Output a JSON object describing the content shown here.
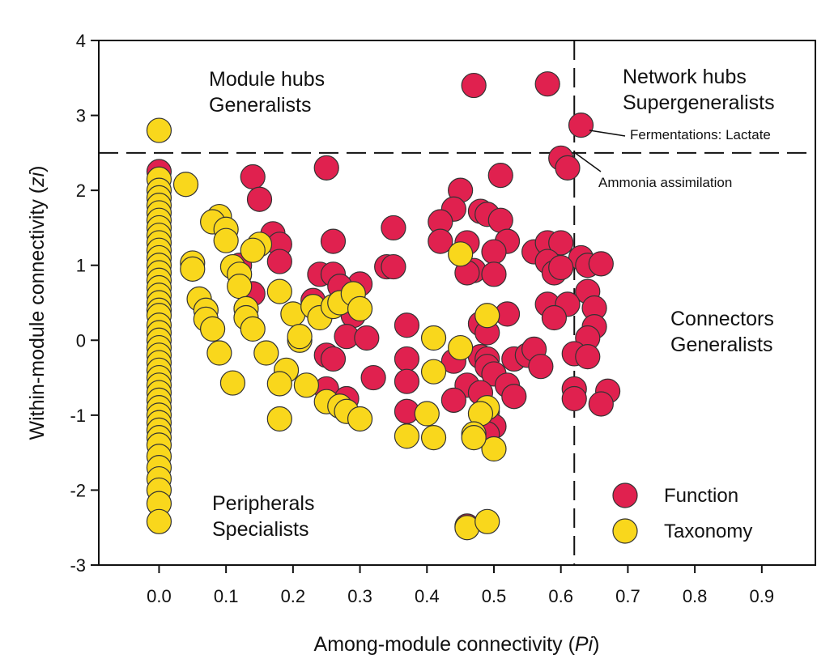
{
  "chart_data": {
    "type": "scatter",
    "title": "",
    "xlabel_main": "Among-module connectivity (",
    "xlabel_var": "Pi",
    "xlabel_close": ")",
    "ylabel_main": "Within-module connectivity (",
    "ylabel_var": "zi",
    "ylabel_close": ")",
    "xlim": [
      -0.09,
      0.98
    ],
    "ylim": [
      -3,
      4
    ],
    "xticks": [
      "0.0",
      "0.1",
      "0.2",
      "0.3",
      "0.4",
      "0.5",
      "0.6",
      "0.7",
      "0.8",
      "0.9"
    ],
    "xtick_values": [
      0,
      0.1,
      0.2,
      0.3,
      0.4,
      0.5,
      0.6,
      0.7,
      0.8,
      0.9
    ],
    "yticks": [
      "-3",
      "-2",
      "-1",
      "0",
      "1",
      "2",
      "3",
      "4"
    ],
    "ytick_values": [
      -3,
      -2,
      -1,
      0,
      1,
      2,
      3,
      4
    ],
    "thresholds": {
      "pi": 0.62,
      "zi": 2.5
    },
    "quadrants": {
      "module_hubs": [
        "Module hubs",
        "Generalists"
      ],
      "network_hubs": [
        "Network hubs",
        "Supergeneralists"
      ],
      "connectors": [
        "Connectors",
        "Generalists"
      ],
      "peripherals": [
        "Peripherals",
        "Specialists"
      ]
    },
    "annotations": [
      {
        "text": "Fermentations: Lactate",
        "x": 0.63,
        "y": 2.87
      },
      {
        "text": "Ammonia assimilation",
        "x": 0.61,
        "y": 2.3
      }
    ],
    "legend": {
      "position": "bottom-right",
      "entries": [
        "Function",
        "Taxonomy"
      ]
    },
    "series": [
      {
        "name": "Function",
        "color": "#E0214F",
        "points": [
          [
            0.0,
            2.25
          ],
          [
            0.47,
            3.4
          ],
          [
            0.58,
            3.42
          ],
          [
            0.63,
            2.87
          ],
          [
            0.6,
            2.43
          ],
          [
            0.61,
            2.3
          ],
          [
            0.25,
            2.3
          ],
          [
            0.14,
            2.18
          ],
          [
            0.51,
            2.2
          ],
          [
            0.15,
            1.88
          ],
          [
            0.45,
            2.0
          ],
          [
            0.44,
            1.75
          ],
          [
            0.48,
            1.72
          ],
          [
            0.49,
            1.68
          ],
          [
            0.51,
            1.6
          ],
          [
            0.42,
            1.58
          ],
          [
            0.35,
            1.5
          ],
          [
            0.52,
            1.32
          ],
          [
            0.42,
            1.32
          ],
          [
            0.26,
            1.32
          ],
          [
            0.17,
            1.42
          ],
          [
            0.18,
            1.28
          ],
          [
            0.46,
            1.3
          ],
          [
            0.5,
            1.18
          ],
          [
            0.56,
            1.18
          ],
          [
            0.58,
            1.3
          ],
          [
            0.6,
            1.3
          ],
          [
            0.58,
            1.05
          ],
          [
            0.63,
            1.1
          ],
          [
            0.64,
            1.0
          ],
          [
            0.59,
            0.9
          ],
          [
            0.6,
            0.97
          ],
          [
            0.66,
            1.02
          ],
          [
            0.18,
            1.05
          ],
          [
            0.12,
            1.0
          ],
          [
            0.34,
            0.98
          ],
          [
            0.35,
            0.98
          ],
          [
            0.47,
            0.93
          ],
          [
            0.5,
            0.88
          ],
          [
            0.24,
            0.88
          ],
          [
            0.26,
            0.88
          ],
          [
            0.46,
            0.9
          ],
          [
            0.3,
            0.75
          ],
          [
            0.27,
            0.72
          ],
          [
            0.14,
            0.62
          ],
          [
            0.64,
            0.65
          ],
          [
            0.23,
            0.53
          ],
          [
            0.29,
            0.33
          ],
          [
            0.52,
            0.35
          ],
          [
            0.58,
            0.48
          ],
          [
            0.61,
            0.48
          ],
          [
            0.65,
            0.43
          ],
          [
            0.59,
            0.3
          ],
          [
            0.65,
            0.18
          ],
          [
            0.48,
            0.22
          ],
          [
            0.49,
            0.1
          ],
          [
            0.37,
            0.2
          ],
          [
            0.28,
            0.05
          ],
          [
            0.31,
            0.03
          ],
          [
            0.64,
            0.03
          ],
          [
            0.62,
            -0.18
          ],
          [
            0.64,
            -0.22
          ],
          [
            0.25,
            -0.2
          ],
          [
            0.26,
            -0.25
          ],
          [
            0.48,
            -0.22
          ],
          [
            0.49,
            -0.25
          ],
          [
            0.53,
            -0.25
          ],
          [
            0.55,
            -0.2
          ],
          [
            0.56,
            -0.12
          ],
          [
            0.57,
            -0.35
          ],
          [
            0.37,
            -0.25
          ],
          [
            0.44,
            -0.28
          ],
          [
            0.49,
            -0.35
          ],
          [
            0.5,
            -0.45
          ],
          [
            0.32,
            -0.5
          ],
          [
            0.37,
            -0.55
          ],
          [
            0.46,
            -0.6
          ],
          [
            0.52,
            -0.6
          ],
          [
            0.53,
            -0.75
          ],
          [
            0.62,
            -0.65
          ],
          [
            0.67,
            -0.68
          ],
          [
            0.62,
            -0.78
          ],
          [
            0.66,
            -0.85
          ],
          [
            0.44,
            -0.8
          ],
          [
            0.48,
            -0.7
          ],
          [
            0.25,
            -0.65
          ],
          [
            0.28,
            -0.78
          ],
          [
            0.37,
            -0.95
          ],
          [
            0.49,
            -0.95
          ],
          [
            0.5,
            -1.15
          ],
          [
            0.49,
            -1.25
          ],
          [
            0.46,
            -2.48
          ]
        ]
      },
      {
        "name": "Taxonomy",
        "color": "#F9D71C",
        "points": [
          [
            0.0,
            2.8
          ],
          [
            0.0,
            2.15
          ],
          [
            0.0,
            2.0
          ],
          [
            0.0,
            1.9
          ],
          [
            0.0,
            1.8
          ],
          [
            0.0,
            1.7
          ],
          [
            0.0,
            1.6
          ],
          [
            0.0,
            1.5
          ],
          [
            0.0,
            1.4
          ],
          [
            0.0,
            1.3
          ],
          [
            0.0,
            1.2
          ],
          [
            0.0,
            1.1
          ],
          [
            0.0,
            1.0
          ],
          [
            0.0,
            0.9
          ],
          [
            0.0,
            0.8
          ],
          [
            0.0,
            0.7
          ],
          [
            0.0,
            0.6
          ],
          [
            0.0,
            0.5
          ],
          [
            0.0,
            0.4
          ],
          [
            0.0,
            0.33
          ],
          [
            0.0,
            0.2
          ],
          [
            0.0,
            0.1
          ],
          [
            0.0,
            0.0
          ],
          [
            0.0,
            -0.1
          ],
          [
            0.0,
            -0.2
          ],
          [
            0.0,
            -0.3
          ],
          [
            0.0,
            -0.4
          ],
          [
            0.0,
            -0.5
          ],
          [
            0.0,
            -0.6
          ],
          [
            0.0,
            -0.7
          ],
          [
            0.0,
            -0.8
          ],
          [
            0.0,
            -0.9
          ],
          [
            0.0,
            -1.0
          ],
          [
            0.0,
            -1.1
          ],
          [
            0.0,
            -1.2
          ],
          [
            0.0,
            -1.3
          ],
          [
            0.0,
            -1.4
          ],
          [
            0.0,
            -1.55
          ],
          [
            0.0,
            -1.7
          ],
          [
            0.0,
            -1.85
          ],
          [
            0.0,
            -2.0
          ],
          [
            0.0,
            -2.18
          ],
          [
            0.0,
            -2.42
          ],
          [
            0.04,
            2.08
          ],
          [
            0.09,
            1.65
          ],
          [
            0.08,
            1.58
          ],
          [
            0.1,
            1.48
          ],
          [
            0.1,
            1.33
          ],
          [
            0.15,
            1.28
          ],
          [
            0.14,
            1.2
          ],
          [
            0.05,
            1.03
          ],
          [
            0.05,
            0.95
          ],
          [
            0.11,
            0.98
          ],
          [
            0.12,
            0.88
          ],
          [
            0.12,
            0.72
          ],
          [
            0.06,
            0.55
          ],
          [
            0.07,
            0.4
          ],
          [
            0.07,
            0.28
          ],
          [
            0.08,
            0.15
          ],
          [
            0.13,
            0.42
          ],
          [
            0.13,
            0.3
          ],
          [
            0.14,
            0.15
          ],
          [
            0.18,
            0.65
          ],
          [
            0.2,
            0.35
          ],
          [
            0.23,
            0.45
          ],
          [
            0.24,
            0.3
          ],
          [
            0.26,
            0.45
          ],
          [
            0.27,
            0.5
          ],
          [
            0.29,
            0.62
          ],
          [
            0.3,
            0.42
          ],
          [
            0.21,
            0.0
          ],
          [
            0.21,
            0.05
          ],
          [
            0.09,
            -0.17
          ],
          [
            0.16,
            -0.17
          ],
          [
            0.19,
            -0.4
          ],
          [
            0.11,
            -0.57
          ],
          [
            0.18,
            -0.58
          ],
          [
            0.22,
            -0.6
          ],
          [
            0.25,
            -0.82
          ],
          [
            0.27,
            -0.88
          ],
          [
            0.28,
            -0.95
          ],
          [
            0.3,
            -1.05
          ],
          [
            0.18,
            -1.05
          ],
          [
            0.41,
            0.03
          ],
          [
            0.41,
            -0.42
          ],
          [
            0.45,
            -0.1
          ],
          [
            0.45,
            1.15
          ],
          [
            0.49,
            0.33
          ],
          [
            0.4,
            -0.98
          ],
          [
            0.49,
            -0.9
          ],
          [
            0.48,
            -0.98
          ],
          [
            0.47,
            -1.25
          ],
          [
            0.5,
            -1.45
          ],
          [
            0.37,
            -1.28
          ],
          [
            0.41,
            -1.3
          ],
          [
            0.47,
            -1.3
          ],
          [
            0.46,
            -2.5
          ],
          [
            0.49,
            -2.42
          ]
        ]
      }
    ]
  }
}
